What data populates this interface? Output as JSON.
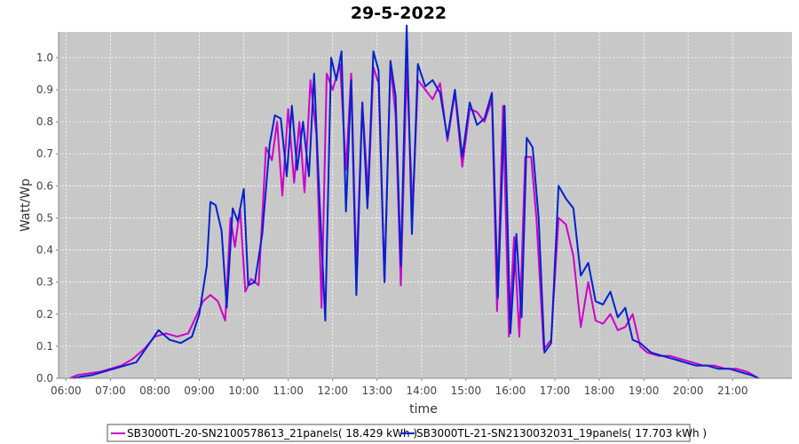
{
  "chart_data": {
    "type": "line",
    "title": "29-5-2022",
    "xlabel": "time",
    "ylabel": "Watt/Wp",
    "xlim": [
      "05:50",
      "22:20"
    ],
    "ylim": [
      0,
      1.08
    ],
    "x_ticks": [
      "06:00",
      "07:00",
      "08:00",
      "09:00",
      "10:00",
      "11:00",
      "12:00",
      "13:00",
      "14:00",
      "15:00",
      "16:00",
      "17:00",
      "18:00",
      "19:00",
      "20:00",
      "21:00"
    ],
    "y_ticks": [
      "0.0",
      "0.1",
      "0.2",
      "0.3",
      "0.4",
      "0.5",
      "0.6",
      "0.7",
      "0.8",
      "0.9",
      "1.0"
    ],
    "grid": true,
    "legend_position": "bottom",
    "plot_background": "#c8c8c8",
    "series": [
      {
        "name": "SB3000TL-20-SN2100578613_21panels( 18.429 kWh )",
        "color": "#cc00cc",
        "points": [
          [
            "06:05",
            0.0
          ],
          [
            "06:15",
            0.01
          ],
          [
            "06:30",
            0.015
          ],
          [
            "06:45",
            0.02
          ],
          [
            "07:00",
            0.03
          ],
          [
            "07:15",
            0.04
          ],
          [
            "07:30",
            0.06
          ],
          [
            "07:45",
            0.09
          ],
          [
            "08:00",
            0.13
          ],
          [
            "08:15",
            0.14
          ],
          [
            "08:30",
            0.13
          ],
          [
            "08:45",
            0.14
          ],
          [
            "08:55",
            0.19
          ],
          [
            "09:05",
            0.24
          ],
          [
            "09:15",
            0.26
          ],
          [
            "09:25",
            0.24
          ],
          [
            "09:35",
            0.18
          ],
          [
            "09:42",
            0.5
          ],
          [
            "09:48",
            0.41
          ],
          [
            "09:55",
            0.53
          ],
          [
            "10:02",
            0.27
          ],
          [
            "10:10",
            0.31
          ],
          [
            "10:20",
            0.29
          ],
          [
            "10:30",
            0.72
          ],
          [
            "10:38",
            0.68
          ],
          [
            "10:45",
            0.8
          ],
          [
            "10:52",
            0.57
          ],
          [
            "11:00",
            0.84
          ],
          [
            "11:08",
            0.61
          ],
          [
            "11:15",
            0.8
          ],
          [
            "11:22",
            0.58
          ],
          [
            "11:30",
            0.93
          ],
          [
            "11:38",
            0.76
          ],
          [
            "11:45",
            0.22
          ],
          [
            "11:52",
            0.95
          ],
          [
            "12:00",
            0.9
          ],
          [
            "12:10",
            0.98
          ],
          [
            "12:18",
            0.65
          ],
          [
            "12:25",
            0.95
          ],
          [
            "12:32",
            0.33
          ],
          [
            "12:40",
            0.86
          ],
          [
            "12:48",
            0.57
          ],
          [
            "12:55",
            0.97
          ],
          [
            "13:02",
            0.92
          ],
          [
            "13:10",
            0.3
          ],
          [
            "13:18",
            0.98
          ],
          [
            "13:25",
            0.82
          ],
          [
            "13:32",
            0.29
          ],
          [
            "13:40",
            0.97
          ],
          [
            "13:48",
            0.52
          ],
          [
            "13:55",
            0.93
          ],
          [
            "14:05",
            0.9
          ],
          [
            "14:15",
            0.87
          ],
          [
            "14:25",
            0.92
          ],
          [
            "14:35",
            0.74
          ],
          [
            "14:45",
            0.89
          ],
          [
            "14:55",
            0.66
          ],
          [
            "15:05",
            0.84
          ],
          [
            "15:15",
            0.83
          ],
          [
            "15:25",
            0.8
          ],
          [
            "15:35",
            0.87
          ],
          [
            "15:42",
            0.21
          ],
          [
            "15:50",
            0.85
          ],
          [
            "15:58",
            0.13
          ],
          [
            "16:05",
            0.44
          ],
          [
            "16:12",
            0.13
          ],
          [
            "16:20",
            0.69
          ],
          [
            "16:28",
            0.69
          ],
          [
            "16:35",
            0.5
          ],
          [
            "16:45",
            0.09
          ],
          [
            "16:55",
            0.12
          ],
          [
            "17:05",
            0.5
          ],
          [
            "17:15",
            0.48
          ],
          [
            "17:25",
            0.38
          ],
          [
            "17:35",
            0.16
          ],
          [
            "17:45",
            0.3
          ],
          [
            "17:55",
            0.18
          ],
          [
            "18:05",
            0.17
          ],
          [
            "18:15",
            0.2
          ],
          [
            "18:25",
            0.15
          ],
          [
            "18:35",
            0.16
          ],
          [
            "18:45",
            0.2
          ],
          [
            "18:55",
            0.1
          ],
          [
            "19:05",
            0.08
          ],
          [
            "19:20",
            0.07
          ],
          [
            "19:35",
            0.07
          ],
          [
            "19:50",
            0.06
          ],
          [
            "20:05",
            0.05
          ],
          [
            "20:20",
            0.04
          ],
          [
            "20:35",
            0.04
          ],
          [
            "20:50",
            0.03
          ],
          [
            "21:05",
            0.03
          ],
          [
            "21:20",
            0.02
          ],
          [
            "21:35",
            0.0
          ]
        ]
      },
      {
        "name": "SB3000TL-21-SN2130032031_19panels( 17.703 kWh )",
        "color": "#0022cc",
        "points": [
          [
            "06:10",
            0.0
          ],
          [
            "06:20",
            0.005
          ],
          [
            "06:35",
            0.01
          ],
          [
            "06:50",
            0.02
          ],
          [
            "07:05",
            0.03
          ],
          [
            "07:20",
            0.04
          ],
          [
            "07:35",
            0.05
          ],
          [
            "07:50",
            0.1
          ],
          [
            "08:05",
            0.15
          ],
          [
            "08:20",
            0.12
          ],
          [
            "08:35",
            0.11
          ],
          [
            "08:50",
            0.13
          ],
          [
            "09:00",
            0.2
          ],
          [
            "09:10",
            0.35
          ],
          [
            "09:15",
            0.55
          ],
          [
            "09:22",
            0.54
          ],
          [
            "09:30",
            0.46
          ],
          [
            "09:37",
            0.22
          ],
          [
            "09:45",
            0.53
          ],
          [
            "09:52",
            0.49
          ],
          [
            "10:00",
            0.59
          ],
          [
            "10:06",
            0.29
          ],
          [
            "10:15",
            0.3
          ],
          [
            "10:25",
            0.45
          ],
          [
            "10:35",
            0.73
          ],
          [
            "10:42",
            0.82
          ],
          [
            "10:50",
            0.81
          ],
          [
            "10:58",
            0.63
          ],
          [
            "11:05",
            0.85
          ],
          [
            "11:12",
            0.65
          ],
          [
            "11:20",
            0.8
          ],
          [
            "11:28",
            0.63
          ],
          [
            "11:35",
            0.95
          ],
          [
            "11:42",
            0.57
          ],
          [
            "11:50",
            0.18
          ],
          [
            "11:58",
            1.0
          ],
          [
            "12:05",
            0.93
          ],
          [
            "12:12",
            1.02
          ],
          [
            "12:18",
            0.52
          ],
          [
            "12:25",
            0.93
          ],
          [
            "12:32",
            0.26
          ],
          [
            "12:40",
            0.86
          ],
          [
            "12:47",
            0.53
          ],
          [
            "12:55",
            1.02
          ],
          [
            "13:02",
            0.96
          ],
          [
            "13:10",
            0.3
          ],
          [
            "13:18",
            0.99
          ],
          [
            "13:25",
            0.88
          ],
          [
            "13:32",
            0.35
          ],
          [
            "13:40",
            1.1
          ],
          [
            "13:47",
            0.45
          ],
          [
            "13:55",
            0.98
          ],
          [
            "14:05",
            0.91
          ],
          [
            "14:15",
            0.93
          ],
          [
            "14:25",
            0.89
          ],
          [
            "14:35",
            0.75
          ],
          [
            "14:45",
            0.9
          ],
          [
            "14:55",
            0.69
          ],
          [
            "15:05",
            0.86
          ],
          [
            "15:15",
            0.79
          ],
          [
            "15:25",
            0.81
          ],
          [
            "15:35",
            0.89
          ],
          [
            "15:43",
            0.25
          ],
          [
            "15:52",
            0.85
          ],
          [
            "16:00",
            0.14
          ],
          [
            "16:08",
            0.45
          ],
          [
            "16:15",
            0.19
          ],
          [
            "16:22",
            0.75
          ],
          [
            "16:30",
            0.72
          ],
          [
            "16:38",
            0.5
          ],
          [
            "16:46",
            0.08
          ],
          [
            "16:55",
            0.11
          ],
          [
            "17:05",
            0.6
          ],
          [
            "17:15",
            0.56
          ],
          [
            "17:25",
            0.53
          ],
          [
            "17:35",
            0.32
          ],
          [
            "17:45",
            0.36
          ],
          [
            "17:55",
            0.24
          ],
          [
            "18:05",
            0.23
          ],
          [
            "18:15",
            0.27
          ],
          [
            "18:25",
            0.19
          ],
          [
            "18:35",
            0.22
          ],
          [
            "18:45",
            0.12
          ],
          [
            "18:55",
            0.11
          ],
          [
            "19:10",
            0.08
          ],
          [
            "19:25",
            0.07
          ],
          [
            "19:40",
            0.06
          ],
          [
            "19:55",
            0.05
          ],
          [
            "20:10",
            0.04
          ],
          [
            "20:25",
            0.04
          ],
          [
            "20:40",
            0.03
          ],
          [
            "20:55",
            0.03
          ],
          [
            "21:10",
            0.02
          ],
          [
            "21:25",
            0.01
          ],
          [
            "21:35",
            0.0
          ]
        ]
      }
    ]
  }
}
